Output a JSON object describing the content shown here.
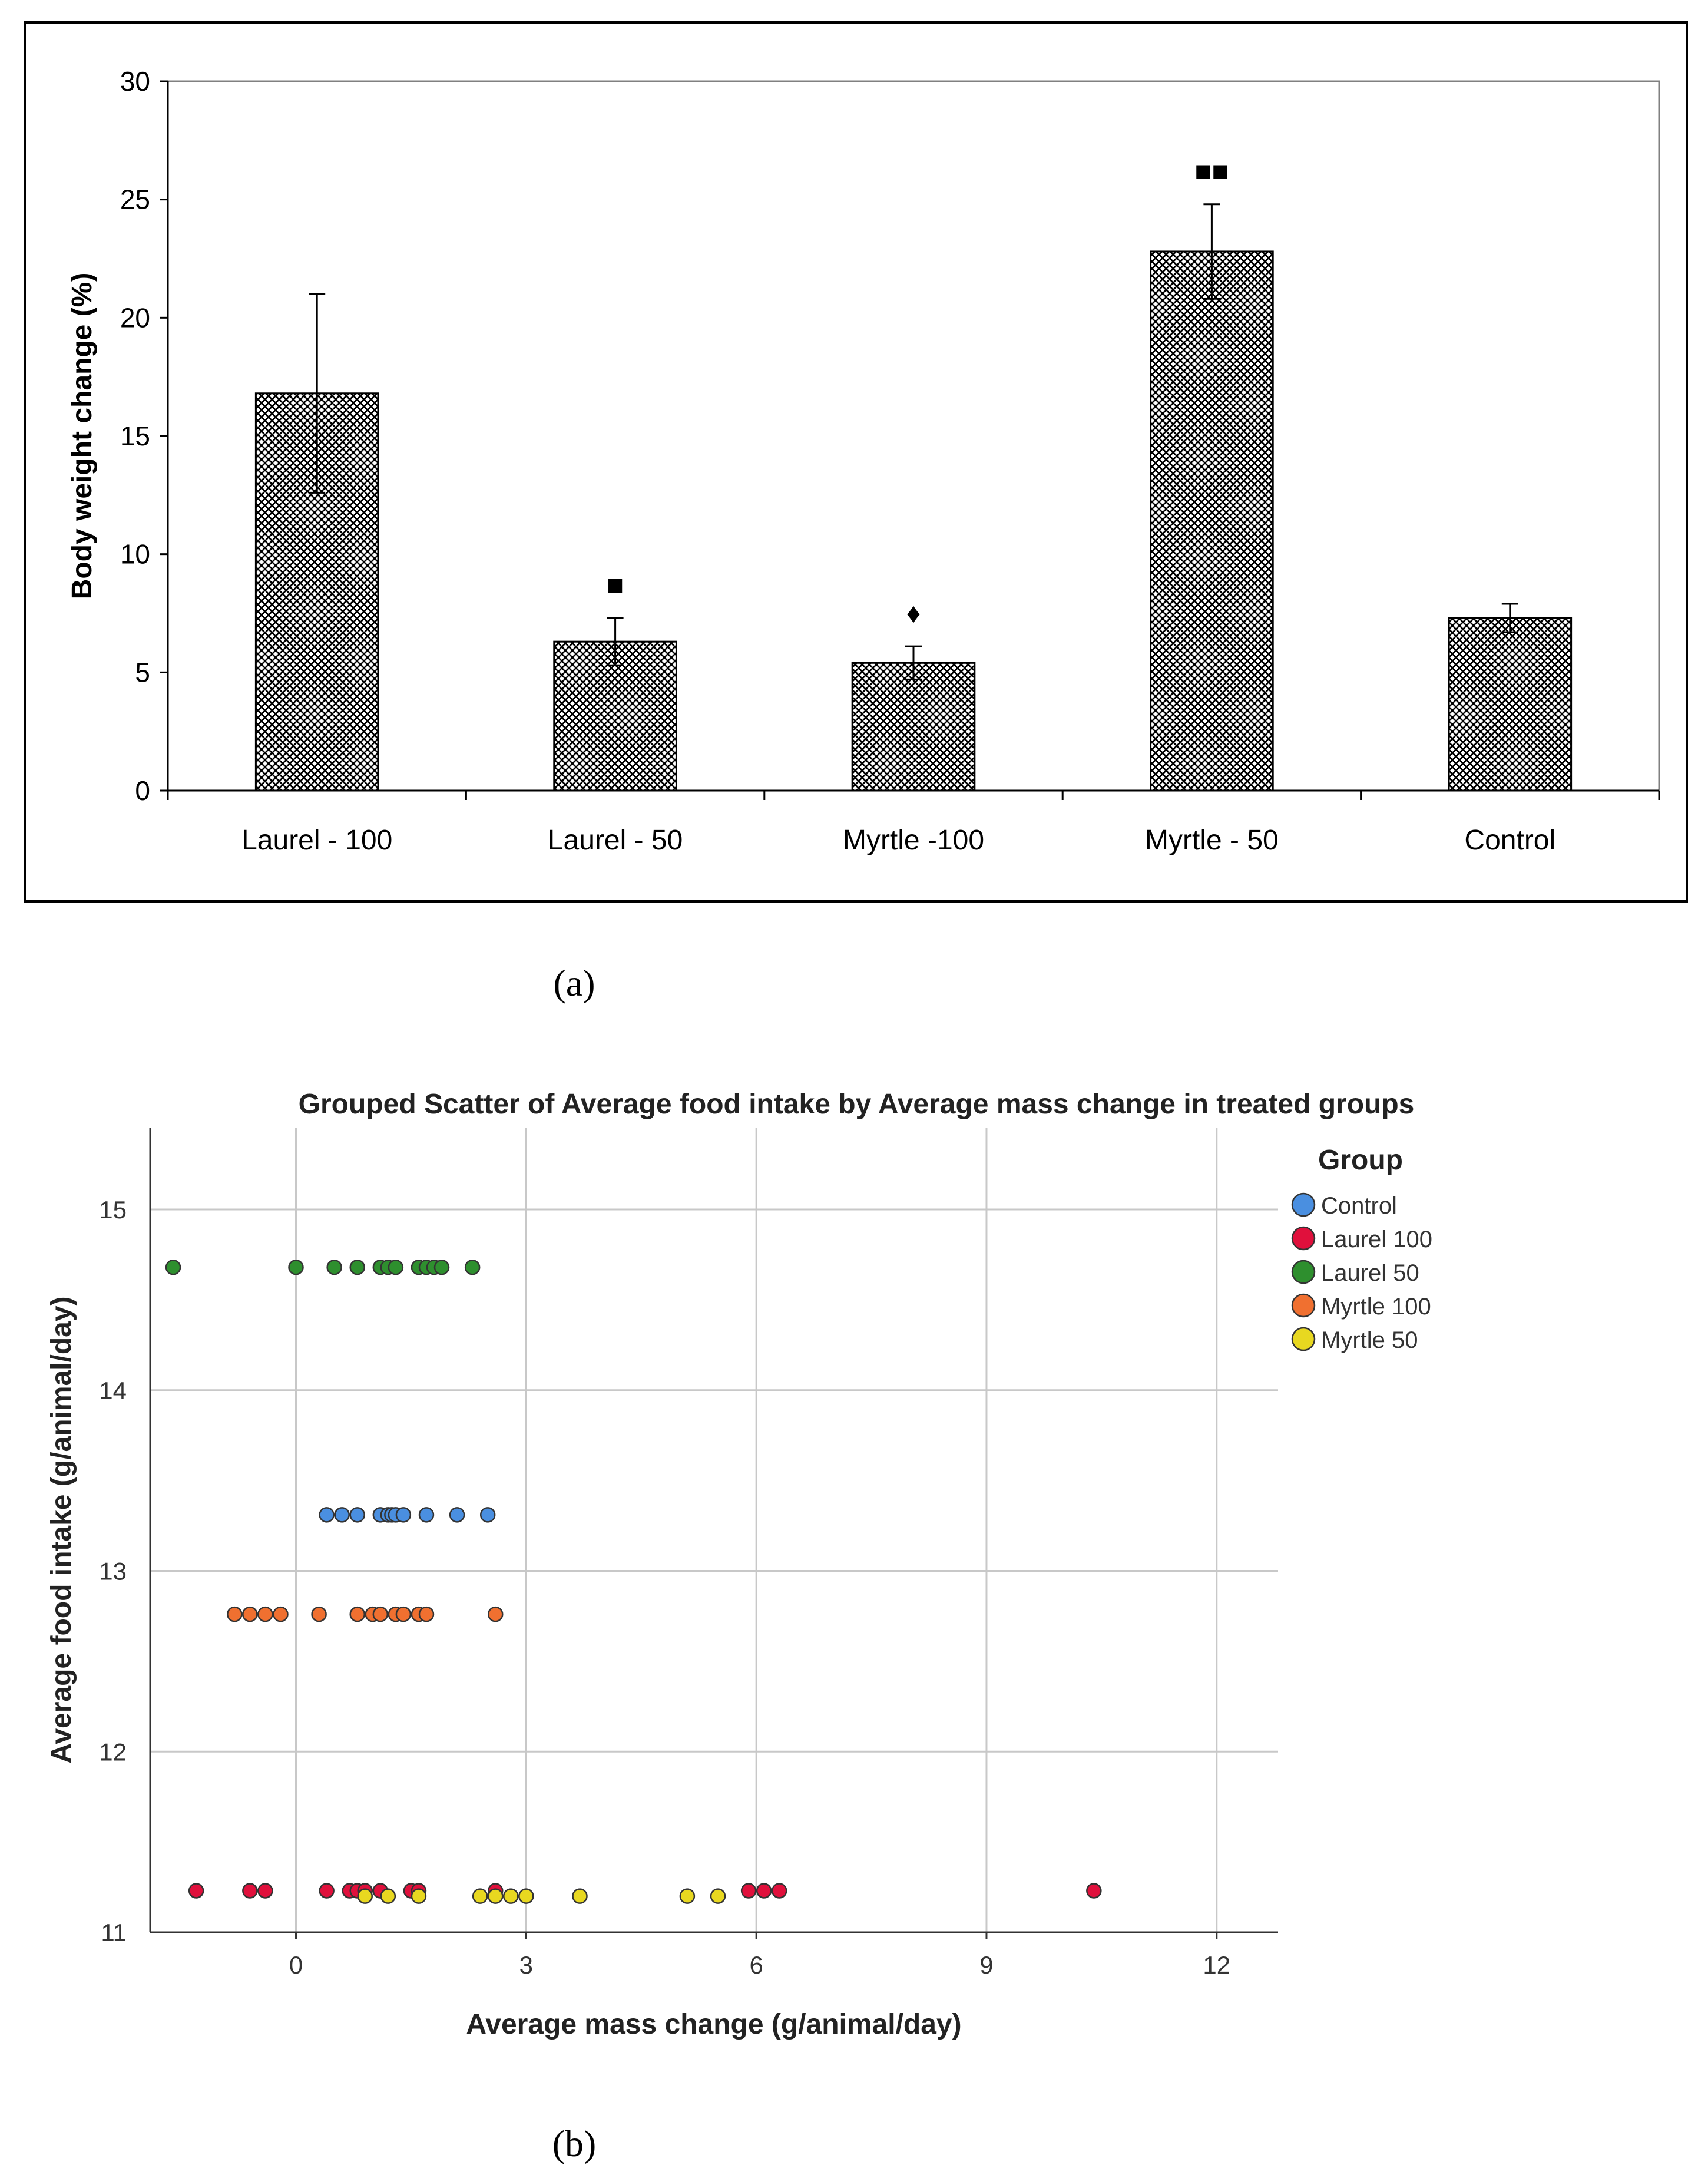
{
  "chart_data": [
    {
      "type": "bar",
      "title": "",
      "categories": [
        "Laurel - 100",
        "Laurel - 50",
        "Myrtle -100",
        "Myrtle - 50",
        "Control"
      ],
      "values": [
        16.8,
        6.3,
        5.4,
        22.8,
        7.3
      ],
      "errors": [
        4.2,
        1.0,
        0.7,
        2.0,
        0.6
      ],
      "markers": [
        "",
        "■",
        "♦",
        "■■",
        ""
      ],
      "xlabel": "",
      "ylabel": "Body weight change (%)",
      "ylim": [
        0,
        30
      ],
      "yticks": [
        0,
        5,
        10,
        15,
        20,
        25,
        30
      ],
      "panel_label": "(a)",
      "fill": "crosshatch",
      "grid": false
    },
    {
      "type": "scatter",
      "title": "Grouped Scatter of Average food intake by Average mass change in treated groups",
      "xlabel": "Average mass change (g/animal/day)",
      "ylabel": "Average food intake (g/animal/day)",
      "xlim": [
        -1.9,
        12.8
      ],
      "ylim": [
        11,
        15.45
      ],
      "xticks": [
        0,
        3,
        6,
        9,
        12
      ],
      "yticks": [
        11,
        12,
        13,
        14,
        15
      ],
      "grid": true,
      "legend_title": "Group",
      "legend_position": "top-right",
      "panel_label": "(b)",
      "series": [
        {
          "name": "Control",
          "color": "#4a8fe0",
          "y": 13.31,
          "x": [
            0.4,
            0.6,
            0.8,
            1.1,
            1.2,
            1.25,
            1.3,
            1.4,
            1.7,
            2.1,
            2.5
          ]
        },
        {
          "name": "Laurel 100",
          "color": "#e0103c",
          "y": 11.23,
          "x": [
            -1.3,
            -0.6,
            -0.4,
            0.4,
            0.7,
            0.8,
            0.9,
            1.1,
            1.5,
            1.6,
            2.6,
            5.9,
            6.1,
            6.3,
            10.4
          ]
        },
        {
          "name": "Laurel 50",
          "color": "#2e8f2e",
          "y": 14.68,
          "x": [
            -1.6,
            0.0,
            0.5,
            0.8,
            1.1,
            1.2,
            1.3,
            1.6,
            1.7,
            1.8,
            1.9,
            2.3
          ]
        },
        {
          "name": "Myrtle 100",
          "color": "#f07030",
          "y": 12.76,
          "x": [
            -0.8,
            -0.6,
            -0.4,
            -0.2,
            0.3,
            0.8,
            1.0,
            1.1,
            1.3,
            1.4,
            1.6,
            1.7,
            2.6
          ]
        },
        {
          "name": "Myrtle 50",
          "color": "#e8d820",
          "y": 11.2,
          "x": [
            0.9,
            1.2,
            1.6,
            2.4,
            2.6,
            2.8,
            3.0,
            3.7,
            5.1,
            5.5
          ]
        }
      ]
    }
  ]
}
